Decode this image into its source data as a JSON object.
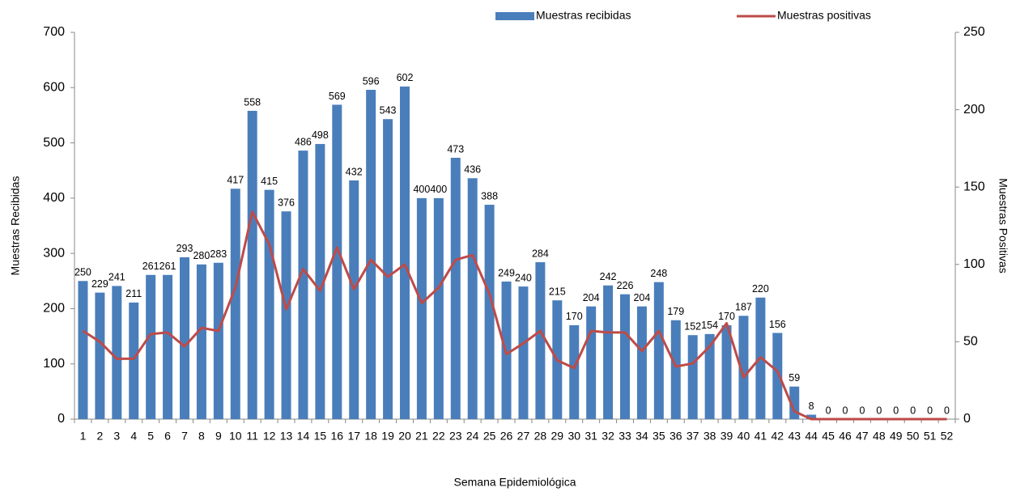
{
  "chart_data": {
    "type": "bar-line",
    "x_label": "Semana Epidemiológica",
    "y_label": "Muestras Recibidas",
    "y2_label": "Muestras  Positivas",
    "categories": [
      "1",
      "2",
      "3",
      "4",
      "5",
      "6",
      "7",
      "8",
      "9",
      "10",
      "11",
      "12",
      "13",
      "14",
      "15",
      "16",
      "17",
      "18",
      "19",
      "20",
      "21",
      "22",
      "23",
      "24",
      "25",
      "26",
      "27",
      "28",
      "29",
      "30",
      "31",
      "32",
      "33",
      "34",
      "35",
      "36",
      "37",
      "38",
      "39",
      "40",
      "41",
      "42",
      "43",
      "44",
      "45",
      "46",
      "47",
      "48",
      "49",
      "50",
      "51",
      "52"
    ],
    "series": [
      {
        "name": "Muestras recibidas",
        "color": "#4a7ebb",
        "kind": "bar",
        "values": [
          250,
          229,
          241,
          211,
          261,
          261,
          293,
          280,
          283,
          417,
          558,
          415,
          376,
          486,
          498,
          569,
          432,
          596,
          543,
          602,
          400,
          400,
          473,
          436,
          388,
          249,
          240,
          284,
          215,
          170,
          204,
          242,
          226,
          204,
          248,
          179,
          152,
          154,
          170,
          187,
          220,
          156,
          59,
          8,
          0,
          0,
          0,
          0,
          0,
          0,
          0,
          0
        ]
      },
      {
        "name": "Muestras positivas",
        "color": "#be4b48",
        "kind": "line",
        "axis": "y2",
        "values": [
          57,
          50,
          39,
          39,
          55,
          56,
          47,
          59,
          57,
          85,
          134,
          113,
          71,
          97,
          83,
          111,
          84,
          103,
          92,
          100,
          75,
          85,
          103,
          106,
          81,
          42,
          49,
          57,
          38,
          33,
          57,
          56,
          56,
          44,
          57,
          34,
          36,
          47,
          62,
          27,
          40,
          31,
          5,
          0,
          0,
          0,
          0,
          0,
          0,
          0,
          0,
          0
        ]
      }
    ],
    "ylim": [
      0,
      700
    ],
    "yticks": [
      0,
      100,
      200,
      300,
      400,
      500,
      600,
      700
    ],
    "y2lim": [
      0,
      250
    ],
    "y2ticks": [
      0,
      50,
      100,
      150,
      200,
      250
    ]
  }
}
